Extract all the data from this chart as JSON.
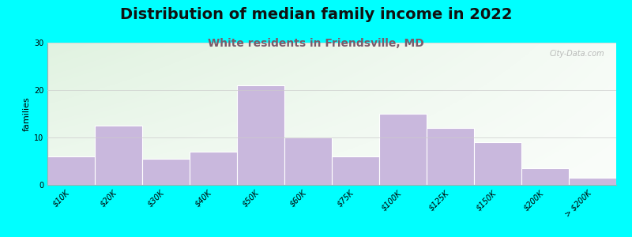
{
  "title": "Distribution of median family income in 2022",
  "subtitle": "White residents in Friendsville, MD",
  "ylabel": "families",
  "categories": [
    "$10K",
    "$20K",
    "$30K",
    "$40K",
    "$50K",
    "$60K",
    "$75K",
    "$100K",
    "$125K",
    "$150K",
    "$200K",
    "> $200K"
  ],
  "values": [
    6,
    12.5,
    5.5,
    7,
    21,
    10,
    6,
    15,
    12,
    9,
    3.5,
    1.5
  ],
  "bar_color": "#c9b8dd",
  "bar_edge_color": "#ffffff",
  "outer_background": "#00ffff",
  "ylim": [
    0,
    30
  ],
  "yticks": [
    0,
    10,
    20,
    30
  ],
  "title_fontsize": 14,
  "subtitle_fontsize": 10,
  "subtitle_color": "#7a5a6a",
  "ylabel_fontsize": 8,
  "tick_fontsize": 7,
  "watermark": "City-Data.com"
}
